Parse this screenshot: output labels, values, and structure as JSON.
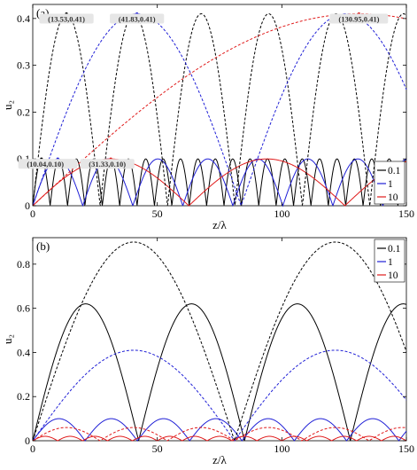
{
  "figure": {
    "panel_a_label": "(a)",
    "panel_b_label": "(b)"
  },
  "chart_data": [
    {
      "type": "line",
      "panel": "(a)",
      "xlabel": "z/λ",
      "ylabel": "u₂",
      "xlim": [
        0,
        150
      ],
      "ylim": [
        0,
        0.43
      ],
      "xticks": [
        0,
        50,
        100,
        150
      ],
      "yticks": [
        0,
        0.1,
        0.2,
        0.3,
        0.4
      ],
      "ytick_labels": [
        "0",
        "0.1",
        "0.2",
        "0.3",
        "0.4"
      ],
      "grid": false,
      "legend_position": "bottom-right",
      "colors": {
        "0.1": "#000000",
        "1": "#1f1fd6",
        "10": "#e01a1a"
      },
      "series": [
        {
          "name": "0.1",
          "style": "solid",
          "color": "#000000",
          "amplitude": 0.1,
          "first_peak": 3.49
        },
        {
          "name": "1",
          "style": "solid",
          "color": "#1f1fd6",
          "amplitude": 0.1,
          "first_peak": 10.04
        },
        {
          "name": "10",
          "style": "solid",
          "color": "#e01a1a",
          "amplitude": 0.1,
          "first_peak": 31.33
        },
        {
          "style": "dashed",
          "color": "#000000",
          "amplitude": 0.41,
          "first_peak": 13.53
        },
        {
          "style": "dashed",
          "color": "#1f1fd6",
          "amplitude": 0.41,
          "first_peak": 41.83
        },
        {
          "style": "dashed",
          "color": "#e01a1a",
          "amplitude": 0.41,
          "first_peak": 130.95
        }
      ],
      "annotations": [
        {
          "text": "(13.53,0.41)",
          "x": 13.53,
          "y": 0.41,
          "color": "#000000"
        },
        {
          "text": "(41.83,0.41)",
          "x": 41.83,
          "y": 0.41,
          "color": "#1f1fd6"
        },
        {
          "text": "(130.95,0.41)",
          "x": 130.95,
          "y": 0.41,
          "color": "#e01a1a"
        },
        {
          "text": "(3.49,0.10)",
          "x": 3.49,
          "y": 0.1,
          "color": "#000000"
        },
        {
          "text": "(10.04,0.10)",
          "x": 10.04,
          "y": 0.1,
          "color": "#1f1fd6"
        },
        {
          "text": "(31.33,0.10)",
          "x": 31.33,
          "y": 0.1,
          "color": "#e01a1a"
        }
      ],
      "legend": [
        "0.1",
        "1",
        "10"
      ]
    },
    {
      "type": "line",
      "panel": "(b)",
      "xlabel": "z/λ",
      "ylabel": "u₂",
      "xlim": [
        0,
        150
      ],
      "ylim": [
        0,
        0.92
      ],
      "xticks": [
        0,
        50,
        100,
        150
      ],
      "yticks": [
        0,
        0.2,
        0.4,
        0.6,
        0.8
      ],
      "ytick_labels": [
        "0",
        "0.2",
        "0.4",
        "0.6",
        "0.8"
      ],
      "grid": false,
      "legend_position": "top-right",
      "colors": {
        "0.1": "#000000",
        "1": "#1f1fd6",
        "10": "#e01a1a"
      },
      "series": [
        {
          "name": "0.1",
          "style": "solid",
          "color": "#000000",
          "amplitude": 0.62,
          "period": 42.5,
          "phase": 0
        },
        {
          "name": "1",
          "style": "solid",
          "color": "#1f1fd6",
          "amplitude": 0.1,
          "period": 21.0,
          "phase": 0
        },
        {
          "name": "10",
          "style": "solid",
          "color": "#e01a1a",
          "amplitude": 0.02,
          "period": 10.0,
          "phase": 0
        },
        {
          "style": "dashed",
          "color": "#000000",
          "amplitude": 0.9,
          "period": 81.0,
          "phase": 0
        },
        {
          "style": "dashed",
          "color": "#1f1fd6",
          "amplitude": 0.41,
          "period": 81.0,
          "phase": 0
        },
        {
          "style": "dashed",
          "color": "#e01a1a",
          "amplitude": 0.06,
          "period": 27.0,
          "phase": 0
        }
      ],
      "legend": [
        "0.1",
        "1",
        "10"
      ]
    }
  ]
}
